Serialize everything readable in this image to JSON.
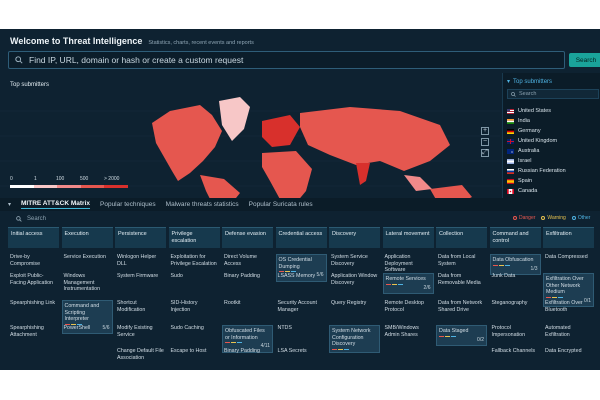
{
  "header": {
    "title": "Welcome to Threat Intelligence",
    "subtitle": "Statistics, charts, recent events and reports"
  },
  "search": {
    "placeholder": "Find IP, URL, domain or hash or create a custom request",
    "button_label": "Search"
  },
  "top_submitters": {
    "title": "Top submitters",
    "legend_labels": [
      "0",
      "1",
      "100",
      "500",
      "> 2000"
    ],
    "legend_colors": [
      "#ffffff",
      "#f7c7c7",
      "#f08a8a",
      "#e5574f",
      "#d8302c"
    ]
  },
  "right_panel": {
    "title": "Top submitters",
    "search_placeholder": "Search",
    "countries": [
      {
        "name": "United States",
        "flag": "us"
      },
      {
        "name": "India",
        "flag": "in"
      },
      {
        "name": "Germany",
        "flag": "de"
      },
      {
        "name": "United Kingdom",
        "flag": "gb"
      },
      {
        "name": "Australia",
        "flag": "au"
      },
      {
        "name": "Israel",
        "flag": "il"
      },
      {
        "name": "Russian Federation",
        "flag": "ru"
      },
      {
        "name": "Spain",
        "flag": "es"
      },
      {
        "name": "Canada",
        "flag": "ca"
      }
    ]
  },
  "tabs": [
    {
      "label": "MITRE ATT&CK Matrix",
      "active": true
    },
    {
      "label": "Popular techniques",
      "active": false
    },
    {
      "label": "Malware threats statistics",
      "active": false
    },
    {
      "label": "Popular Suricata rules",
      "active": false
    }
  ],
  "matrix": {
    "search_placeholder": "Search",
    "severity": [
      {
        "label": "Danger",
        "color": "#e8574f"
      },
      {
        "label": "Warning",
        "color": "#e8c34f"
      },
      {
        "label": "Other",
        "color": "#4fb3e3"
      }
    ],
    "columns": [
      {
        "header": "Initial access",
        "cells": [
          {
            "text": "Drive-by Compromise"
          },
          {
            "text": "Exploit Public-Facing Application"
          },
          {
            "text": "Spearphishing Link"
          },
          {
            "text": "Spearphishing Attachment"
          }
        ]
      },
      {
        "header": "Execution",
        "cells": [
          {
            "text": "Service Execution"
          },
          {
            "text": "Windows Management Instrumentation"
          },
          {
            "text": "Command and Scripting Interpreter",
            "count": "5/6",
            "highlight": true
          },
          {
            "text": "PowerShell"
          }
        ]
      },
      {
        "header": "Persistence",
        "cells": [
          {
            "text": "Winlogon Helper DLL"
          },
          {
            "text": "System Firmware"
          },
          {
            "text": "Shortcut Modification"
          },
          {
            "text": "Modify Existing Service"
          },
          {
            "text": "Change Default File Association"
          }
        ]
      },
      {
        "header": "Privilege escalation",
        "cells": [
          {
            "text": "Exploitation for Privilege Escalation"
          },
          {
            "text": "Sudo"
          },
          {
            "text": "SID-History Injection"
          },
          {
            "text": "Sudo Caching"
          },
          {
            "text": "Escape to Host"
          }
        ]
      },
      {
        "header": "Defense evasion",
        "cells": [
          {
            "text": "Direct Volume Access"
          },
          {
            "text": "Binary Padding"
          },
          {
            "text": "Rootkit"
          },
          {
            "text": "Obfuscated Files or Information",
            "count": "4/11",
            "highlight": true
          },
          {
            "text": "Binary Padding"
          }
        ]
      },
      {
        "header": "Credential access",
        "cells": [
          {
            "text": "OS Credential Dumping",
            "count": "5/6",
            "highlight": true
          },
          {
            "text": "LSASS Memory"
          },
          {
            "text": "Security Account Manager"
          },
          {
            "text": "NTDS"
          },
          {
            "text": "LSA Secrets"
          }
        ]
      },
      {
        "header": "Discovery",
        "cells": [
          {
            "text": "System Service Discovery"
          },
          {
            "text": "Application Window Discovery"
          },
          {
            "text": "Query Registry"
          },
          {
            "text": "System Network Configuration Discovery",
            "highlight": true
          }
        ]
      },
      {
        "header": "Lateral movement",
        "cells": [
          {
            "text": "Application Deployment Software"
          },
          {
            "text": "Remote Services",
            "count": "2/6",
            "highlight": true
          },
          {
            "text": "Remote Desktop Protocol"
          },
          {
            "text": "SMB/Windows Admin Shares"
          }
        ]
      },
      {
        "header": "Collection",
        "cells": [
          {
            "text": "Data from Local System"
          },
          {
            "text": "Data from Removable Media"
          },
          {
            "text": "Data from Network Shared Drive"
          },
          {
            "text": "Data Staged",
            "count": "0/2",
            "highlight": true
          }
        ]
      },
      {
        "header": "Command and control",
        "cells": [
          {
            "text": "Data Obfuscation",
            "count": "1/3",
            "highlight": true
          },
          {
            "text": "Junk Data"
          },
          {
            "text": "Steganography"
          },
          {
            "text": "Protocol Impersonation"
          },
          {
            "text": "Fallback Channels"
          }
        ]
      },
      {
        "header": "Exfiltration",
        "cells": [
          {
            "text": "Data Compressed"
          },
          {
            "text": "Exfiltration Over Other Network Medium",
            "count": "0/1",
            "highlight": true
          },
          {
            "text": "Exfiltration Over Bluetooth"
          },
          {
            "text": "Automated Exfiltration"
          },
          {
            "text": "Data Encrypted"
          }
        ]
      }
    ]
  }
}
